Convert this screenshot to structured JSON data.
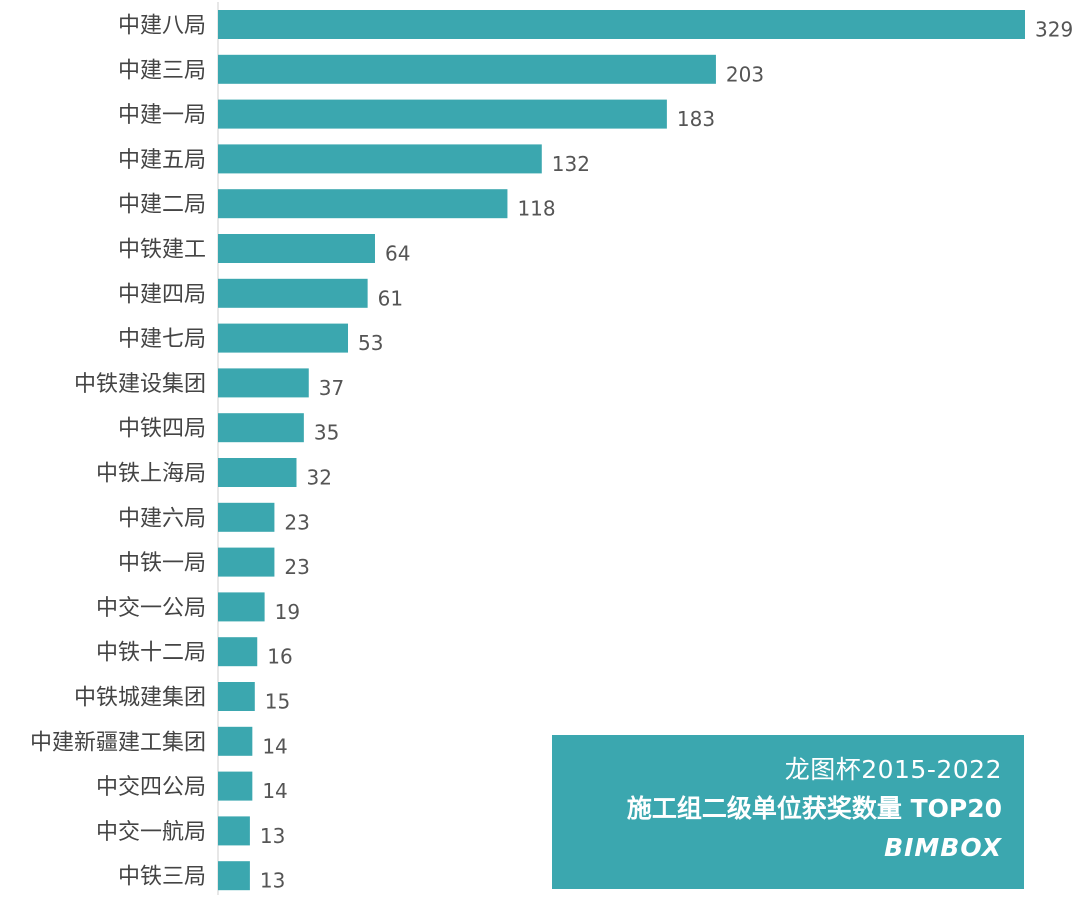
{
  "chart_data": {
    "type": "bar",
    "orientation": "horizontal",
    "categories": [
      "中建八局",
      "中建三局",
      "中建一局",
      "中建五局",
      "中建二局",
      "中铁建工",
      "中建四局",
      "中建七局",
      "中铁建设集团",
      "中铁四局",
      "中铁上海局",
      "中建六局",
      "中铁一局",
      "中交一公局",
      "中铁十二局",
      "中铁城建集团",
      "中建新疆建工集团",
      "中交四公局",
      "中交一航局",
      "中铁三局"
    ],
    "values": [
      329,
      203,
      183,
      132,
      118,
      64,
      61,
      53,
      37,
      35,
      32,
      23,
      23,
      19,
      16,
      15,
      14,
      14,
      13,
      13
    ],
    "xlim": [
      0,
      329
    ],
    "grid": false,
    "bar_color": "#3BA7AF",
    "text_color": "#444444"
  },
  "legend": {
    "line1": "龙图杯2015-2022",
    "line2": "施工组二级单位获奖数量 TOP20",
    "brand": "BIMBOX",
    "background": "#3BA7AF"
  }
}
